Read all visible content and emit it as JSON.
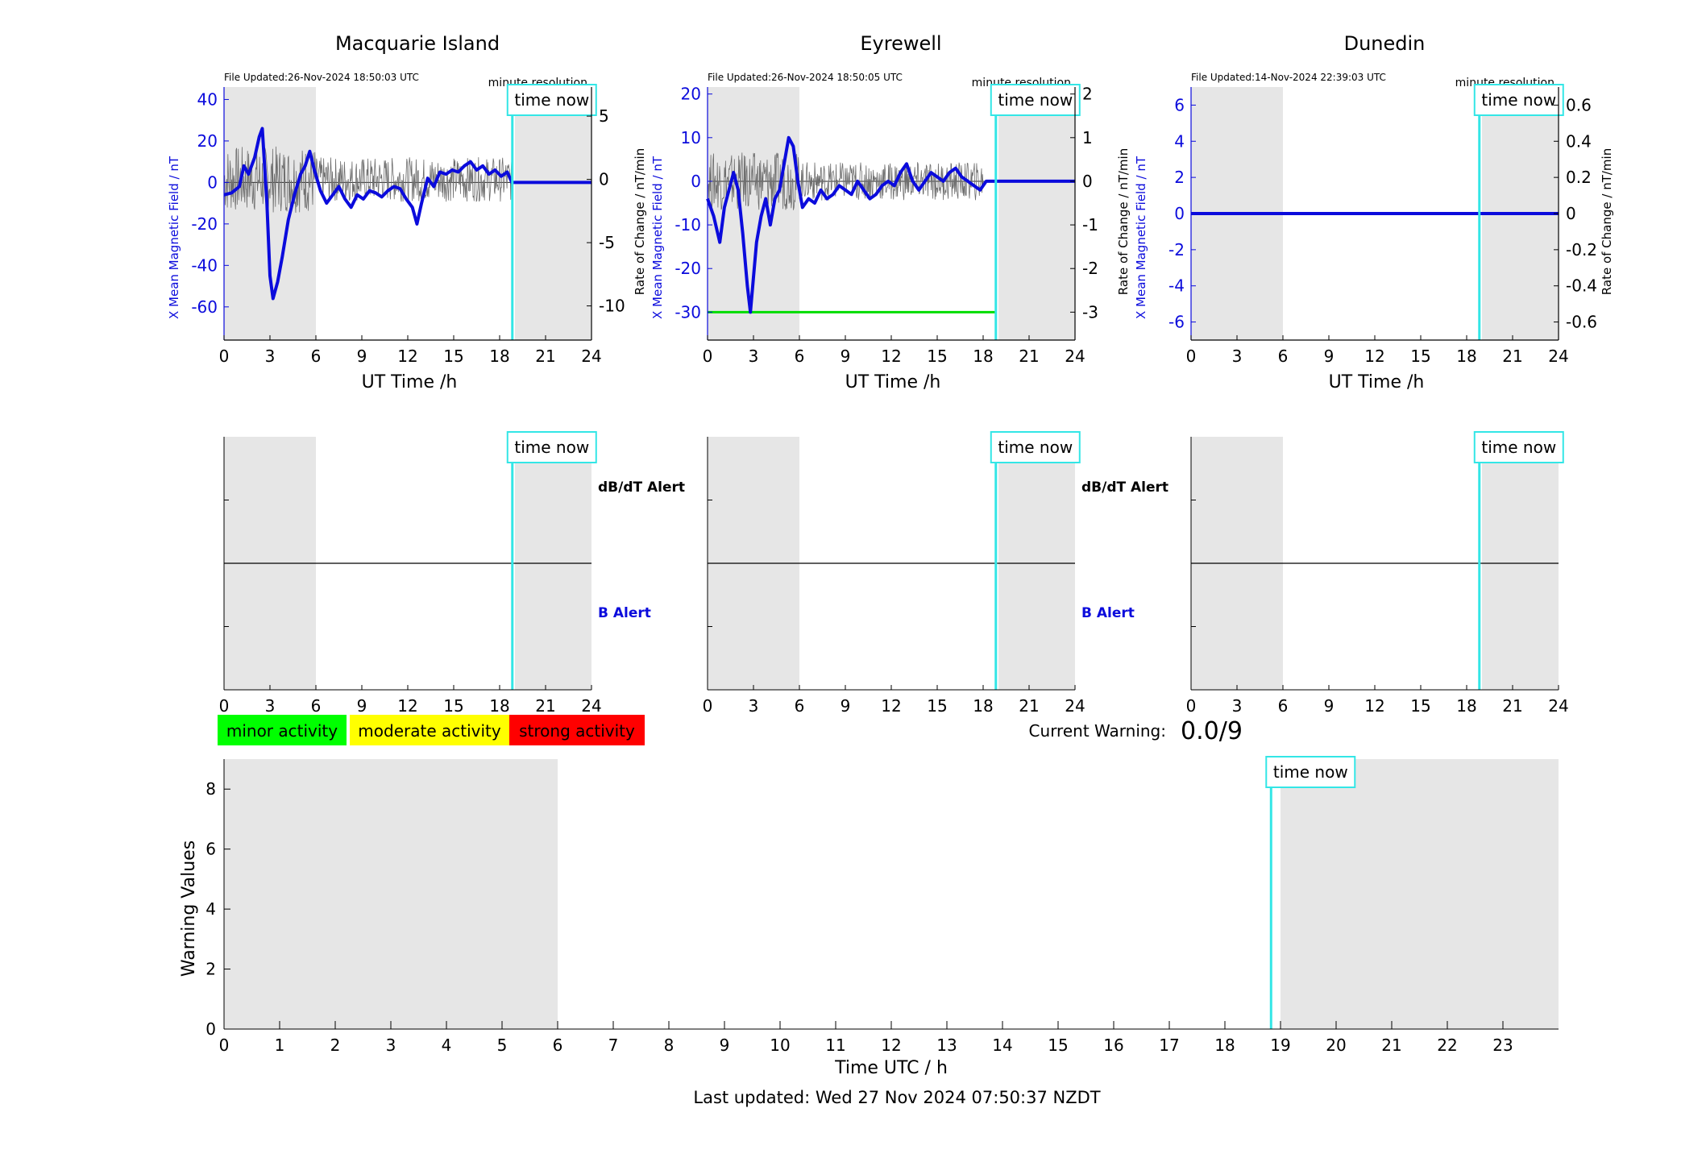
{
  "colors": {
    "shade": "#e6e6e6",
    "field": "#0b0bdc",
    "rate": "#6e6e6e",
    "now": "#33e6e6",
    "minor": "#00ff00",
    "moderate": "#ffff00",
    "strong": "#ff0000",
    "threshold": "#00dd00"
  },
  "now_label": "time now",
  "resolution_label": "minute resolution",
  "alert_labels": {
    "dbdt": "dB/dT Alert",
    "b": "B Alert"
  },
  "legend": {
    "minor": "minor activity",
    "moderate": "moderate activity",
    "strong": "strong activity"
  },
  "current_warning": {
    "label": "Current Warning:",
    "value": "0.0/9"
  },
  "last_updated": "Last updated: Wed 27 Nov 2024 07:50:37 NZDT",
  "chart_data": [
    {
      "type": "line",
      "station": "Macquarie Island",
      "file_updated": "File Updated:26-Nov-2024 18:50:03 UTC",
      "xlabel": "UT Time /h",
      "ylabel_left": "X Mean Magnetic Field / nT",
      "ylabel_right": "Rate of Change / nT/min",
      "xlim": [
        0,
        24
      ],
      "xticks": [
        0,
        3,
        6,
        9,
        12,
        15,
        18,
        21,
        24
      ],
      "ylim_left": [
        -76,
        46
      ],
      "yticks_left": [
        -60,
        -40,
        -20,
        0,
        20,
        40
      ],
      "ylim_right": [
        -12.7,
        7.3
      ],
      "yticks_right": [
        -10,
        -5,
        0,
        5
      ],
      "now_hour": 18.83,
      "shade": [
        [
          0,
          6
        ],
        [
          19,
          24
        ]
      ],
      "series": [
        {
          "axis": "left",
          "x": [
            0,
            0.5,
            1,
            1.3,
            1.6,
            2,
            2.3,
            2.5,
            2.8,
            3.0,
            3.2,
            3.5,
            3.8,
            4.2,
            4.6,
            5.0,
            5.3,
            5.6,
            5.9,
            6.3,
            6.7,
            7.1,
            7.5,
            7.9,
            8.3,
            8.7,
            9.1,
            9.5,
            9.9,
            10.3,
            10.7,
            11.1,
            11.5,
            11.9,
            12.3,
            12.6,
            12.9,
            13.3,
            13.7,
            14.1,
            14.5,
            14.9,
            15.3,
            15.7,
            16.1,
            16.5,
            16.9,
            17.3,
            17.7,
            18.1,
            18.5,
            18.8,
            24
          ],
          "y": [
            -6,
            -5,
            -2,
            8,
            4,
            12,
            22,
            26,
            -10,
            -45,
            -56,
            -48,
            -36,
            -18,
            -6,
            4,
            8,
            15,
            6,
            -4,
            -10,
            -6,
            -2,
            -8,
            -12,
            -6,
            -8,
            -4,
            -5,
            -7,
            -4,
            -2,
            -3,
            -8,
            -12,
            -20,
            -10,
            2,
            -2,
            5,
            4,
            6,
            5,
            8,
            10,
            6,
            8,
            4,
            6,
            3,
            5,
            0,
            0
          ]
        },
        {
          "axis": "right",
          "noise_amplitude": 2.2,
          "x_end": 18.8
        }
      ]
    },
    {
      "type": "line",
      "station": "Eyrewell",
      "file_updated": "File Updated:26-Nov-2024 18:50:05 UTC",
      "xlabel": "UT Time /h",
      "ylabel_left": "X Mean Magnetic Field / nT",
      "ylabel_right": "Rate of Change / nT/min",
      "xlim": [
        0,
        24
      ],
      "xticks": [
        0,
        3,
        6,
        9,
        12,
        15,
        18,
        21,
        24
      ],
      "ylim_left": [
        -36.4,
        21.6
      ],
      "yticks_left": [
        -30,
        -20,
        -10,
        0,
        10,
        20
      ],
      "ylim_right": [
        -3.64,
        2.16
      ],
      "yticks_right": [
        -3,
        -2,
        -1,
        0,
        1,
        2
      ],
      "now_hour": 18.83,
      "shade": [
        [
          0,
          6
        ],
        [
          19,
          24
        ]
      ],
      "threshold_left": -30,
      "series": [
        {
          "axis": "left",
          "x": [
            0,
            0.4,
            0.8,
            1.1,
            1.4,
            1.7,
            2.0,
            2.3,
            2.6,
            2.8,
            3.0,
            3.2,
            3.5,
            3.8,
            4.1,
            4.4,
            4.7,
            5.0,
            5.3,
            5.6,
            5.9,
            6.2,
            6.6,
            7.0,
            7.4,
            7.8,
            8.2,
            8.6,
            9.0,
            9.4,
            9.8,
            10.2,
            10.6,
            11.0,
            11.4,
            11.8,
            12.2,
            12.6,
            13.0,
            13.4,
            13.8,
            14.2,
            14.6,
            15.0,
            15.4,
            15.8,
            16.2,
            16.6,
            17.0,
            17.4,
            17.8,
            18.0,
            18.2,
            24
          ],
          "y": [
            -4,
            -8,
            -14,
            -6,
            -2,
            2,
            -2,
            -12,
            -24,
            -30,
            -22,
            -14,
            -8,
            -4,
            -10,
            -4,
            -2,
            4,
            10,
            8,
            0,
            -6,
            -4,
            -5,
            -2,
            -4,
            -3,
            -1,
            -2,
            -3,
            0,
            -2,
            -4,
            -3,
            -1,
            0,
            -1,
            2,
            4,
            0,
            -2,
            0,
            2,
            1,
            0,
            2,
            3,
            1,
            0,
            -1,
            -2,
            -1,
            0,
            0
          ]
        },
        {
          "axis": "right",
          "noise_amplitude": 0.55,
          "x_end": 18.0
        }
      ]
    },
    {
      "type": "line",
      "station": "Dunedin",
      "file_updated": "File Updated:14-Nov-2024 22:39:03 UTC",
      "xlabel": "UT Time /h",
      "ylabel_left": "X Mean Magnetic Field / nT",
      "ylabel_right": "Rate of Change / nT/min",
      "xlim": [
        0,
        24
      ],
      "xticks": [
        0,
        3,
        6,
        9,
        12,
        15,
        18,
        21,
        24
      ],
      "ylim_left": [
        -7,
        7
      ],
      "yticks_left": [
        -6,
        -4,
        -2,
        0,
        2,
        4,
        6
      ],
      "ylim_right": [
        -0.7,
        0.7
      ],
      "yticks_right": [
        -0.6,
        -0.4,
        -0.2,
        0,
        0.2,
        0.4,
        0.6
      ],
      "now_hour": 18.83,
      "shade": [
        [
          0,
          6
        ],
        [
          19,
          24
        ]
      ],
      "series": [
        {
          "axis": "left",
          "x": [
            0,
            24
          ],
          "y": [
            0,
            0
          ]
        }
      ]
    }
  ],
  "alert_panels": [
    {
      "xlim": [
        0,
        24
      ],
      "xticks": [
        0,
        3,
        6,
        9,
        12,
        15,
        18,
        21,
        24
      ],
      "now_hour": 18.83,
      "shade": [
        [
          0,
          6
        ],
        [
          19,
          24
        ]
      ],
      "show_labels": true
    },
    {
      "xlim": [
        0,
        24
      ],
      "xticks": [
        0,
        3,
        6,
        9,
        12,
        15,
        18,
        21,
        24
      ],
      "now_hour": 18.83,
      "shade": [
        [
          0,
          6
        ],
        [
          19,
          24
        ]
      ],
      "show_labels": true
    },
    {
      "xlim": [
        0,
        24
      ],
      "xticks": [
        0,
        3,
        6,
        9,
        12,
        15,
        18,
        21,
        24
      ],
      "now_hour": 18.83,
      "shade": [
        [
          0,
          6
        ],
        [
          19,
          24
        ]
      ],
      "show_labels": false
    }
  ],
  "warning_chart": {
    "type": "bar",
    "xlabel": "Time UTC / h",
    "ylabel": "Warning Values",
    "xlim": [
      0,
      24
    ],
    "xticks": [
      0,
      1,
      2,
      3,
      4,
      5,
      6,
      7,
      8,
      9,
      10,
      11,
      12,
      13,
      14,
      15,
      16,
      17,
      18,
      19,
      20,
      21,
      22,
      23
    ],
    "ylim": [
      0,
      9
    ],
    "yticks": [
      0,
      2,
      4,
      6,
      8
    ],
    "now_hour": 18.83,
    "shade": [
      [
        0,
        6
      ],
      [
        19,
        24
      ]
    ],
    "values": []
  }
}
